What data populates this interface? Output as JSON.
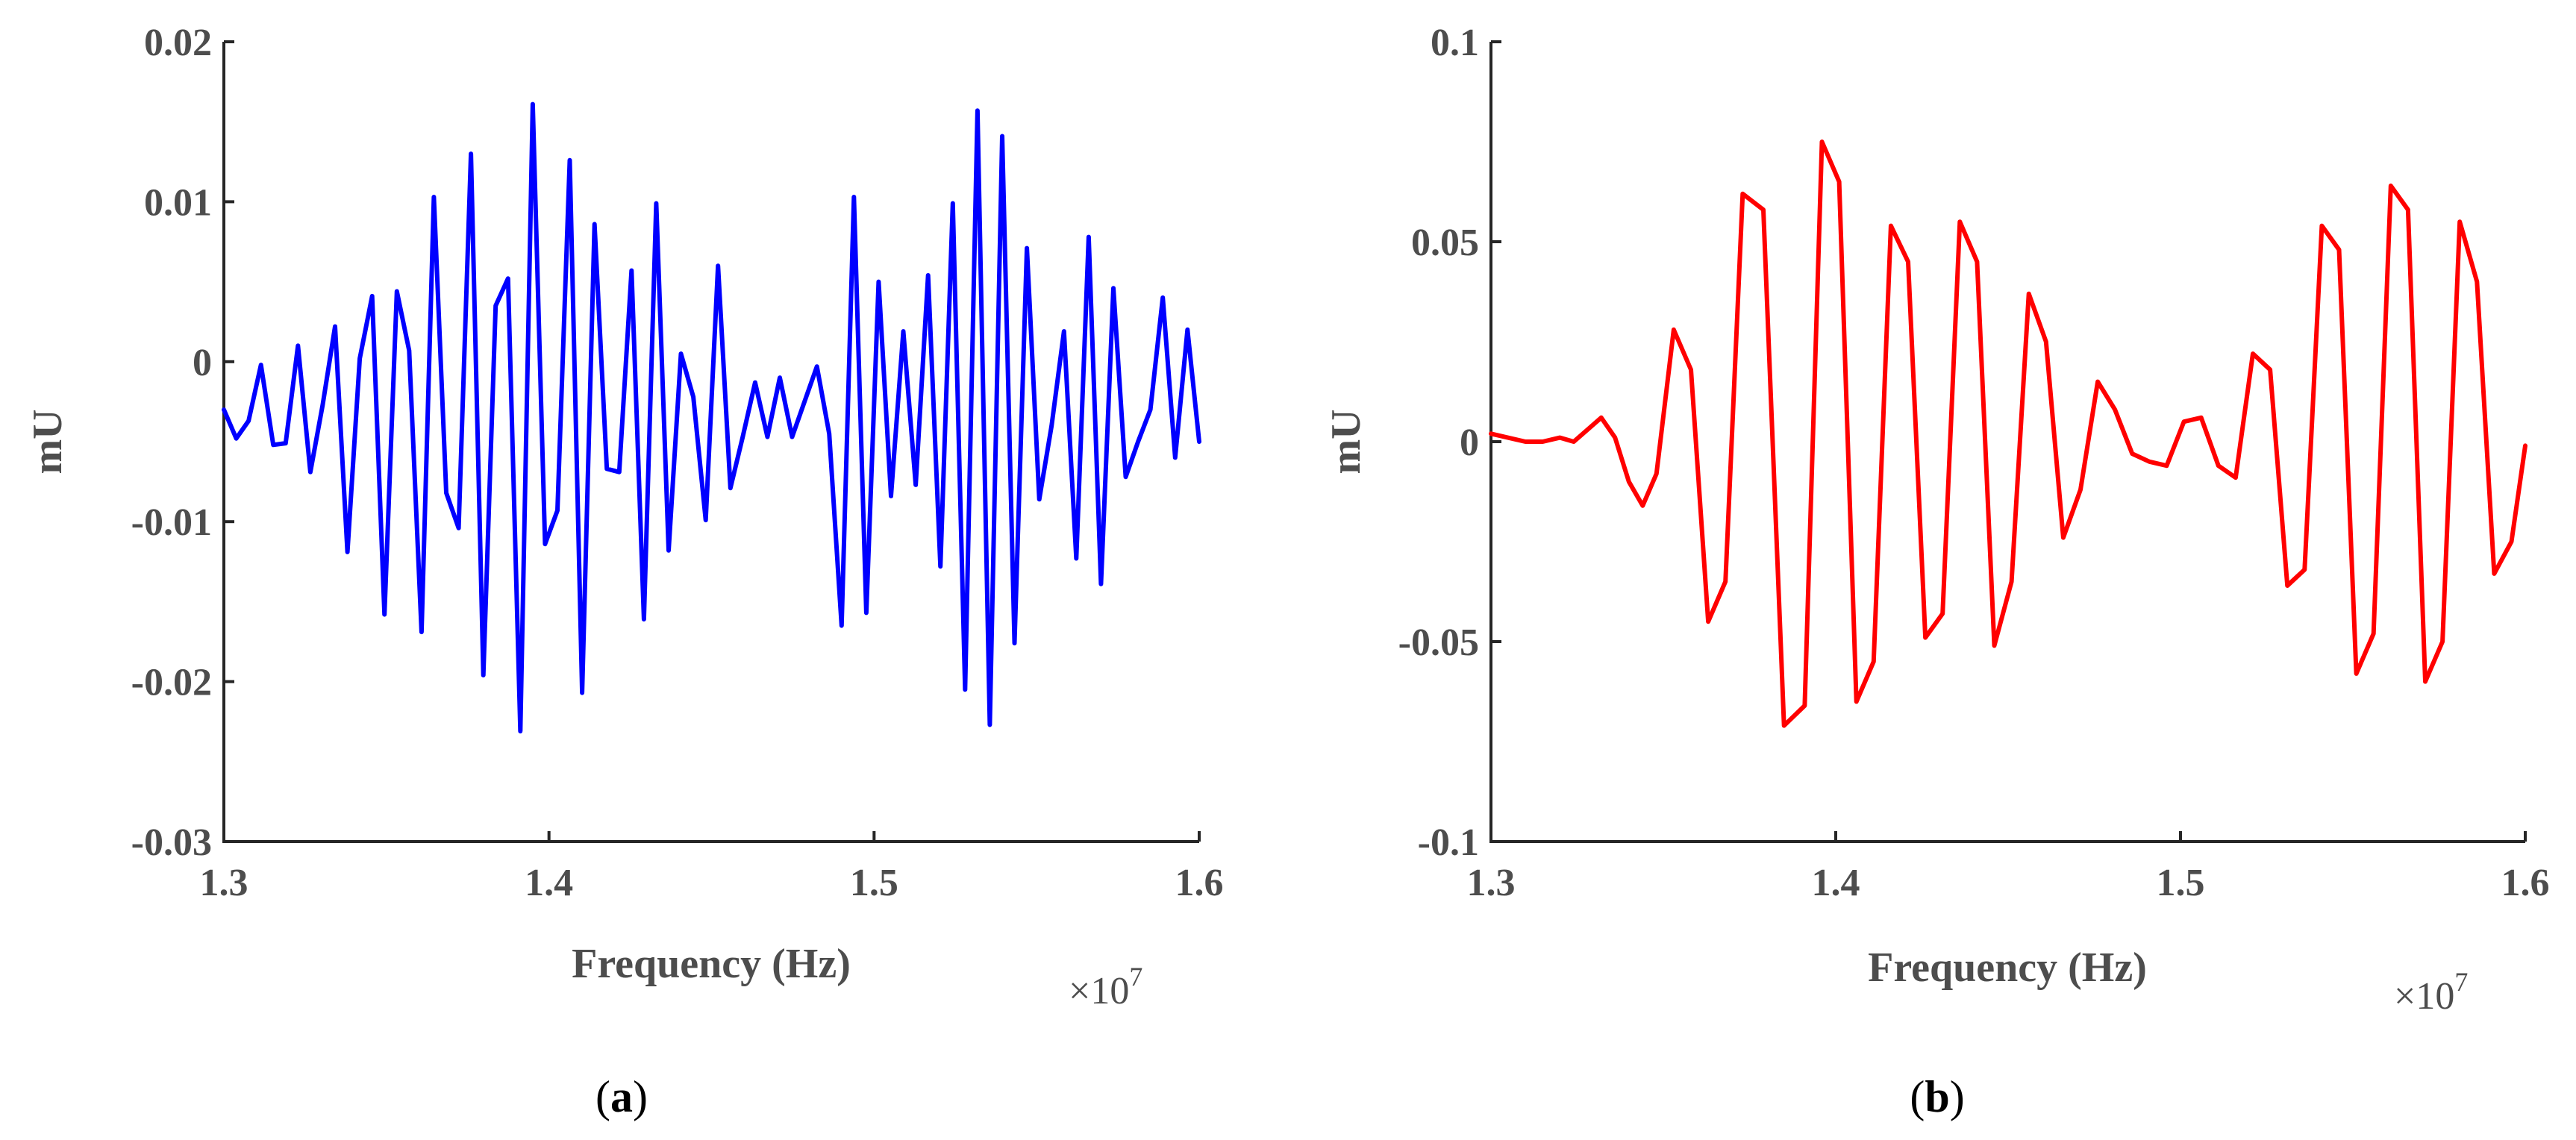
{
  "colors": {
    "panel_a": "#0000ff",
    "panel_b": "#ff0000",
    "axis": "#262626",
    "tick_text": "#4d4d4d"
  },
  "chart_data": [
    {
      "id": "a",
      "type": "line",
      "caption": {
        "open": "(",
        "letter": "a",
        "close": ")"
      },
      "xlabel": "Frequency (Hz)",
      "ylabel": "mU",
      "x_multiplier": {
        "base": "×10",
        "exponent": "7"
      },
      "xlim": [
        13000000,
        16000000
      ],
      "ylim": [
        -0.03,
        0.02
      ],
      "xticks": [
        13000000,
        14000000,
        15000000,
        16000000
      ],
      "xtick_labels": [
        "1.3",
        "1.4",
        "1.5",
        "1.6"
      ],
      "yticks": [
        0.02,
        0.01,
        0,
        -0.01,
        -0.02,
        -0.03
      ],
      "ytick_labels": [
        "0.02",
        "0.01",
        "0",
        "-0.01",
        "-0.02",
        "-0.03"
      ],
      "grid": false,
      "series": [
        {
          "color": "#0000ff",
          "x": [
            13000000,
            13038000,
            13076000,
            13114000,
            13152000,
            13190000,
            13228000,
            13266000,
            13304000,
            13342000,
            13380000,
            13418000,
            13456000,
            13494000,
            13532000,
            13570000,
            13608000,
            13646000,
            13684000,
            13722000,
            13760000,
            13798000,
            13836000,
            13874000,
            13912000,
            13950000,
            13988000,
            14026000,
            14064000,
            14102000,
            14140000,
            14178000,
            14216000,
            14254000,
            14292000,
            14330000,
            14368000,
            14406000,
            14444000,
            14482000,
            14520000,
            14558000,
            14596000,
            14634000,
            14672000,
            14710000,
            14748000,
            14786000,
            14824000,
            14862000,
            14900000,
            14938000,
            14976000,
            15014000,
            15052000,
            15090000,
            15128000,
            15166000,
            15204000,
            15242000,
            15280000,
            15318000,
            15356000,
            15394000,
            15432000,
            15470000,
            15508000,
            15546000,
            15584000,
            15622000,
            15660000,
            15698000,
            15736000,
            15774000,
            15812000,
            15850000,
            15888000,
            15926000,
            15964000,
            16000000
          ],
          "y": [
            -0.003,
            -0.0048,
            -0.0037,
            -0.0002,
            -0.0052,
            -0.0051,
            0.001,
            -0.0069,
            -0.0027,
            0.0022,
            -0.0119,
            0.0002,
            0.0041,
            -0.0158,
            0.0044,
            0.0007,
            -0.0169,
            0.0103,
            -0.0082,
            -0.0104,
            0.013,
            -0.0196,
            0.0035,
            0.0052,
            -0.0231,
            0.0161,
            -0.0114,
            -0.0093,
            0.0126,
            -0.0207,
            0.0086,
            -0.0067,
            -0.0069,
            0.0057,
            -0.0161,
            0.0099,
            -0.0118,
            0.0005,
            -0.0022,
            -0.0099,
            0.006,
            -0.0079,
            -0.0047,
            -0.0013,
            -0.0047,
            -0.001,
            -0.0047,
            -0.0025,
            -0.0003,
            -0.0045,
            -0.0165,
            0.0103,
            -0.0157,
            0.005,
            -0.0084,
            0.0019,
            -0.0077,
            0.0054,
            -0.0128,
            0.0099,
            -0.0205,
            0.0157,
            -0.0227,
            0.0141,
            -0.0176,
            0.0071,
            -0.0086,
            -0.004,
            0.0019,
            -0.0123,
            0.0078,
            -0.0139,
            0.0046,
            -0.0072,
            -0.005,
            -0.003,
            0.004,
            -0.006,
            0.002,
            -0.005
          ]
        }
      ]
    },
    {
      "id": "b",
      "type": "line",
      "caption": {
        "open": "(",
        "letter": "b",
        "close": ")"
      },
      "xlabel": "Frequency (Hz)",
      "ylabel": "mU",
      "x_multiplier": {
        "base": "×10",
        "exponent": "7"
      },
      "xlim": [
        13000000,
        16000000
      ],
      "ylim": [
        -0.1,
        0.1
      ],
      "xticks": [
        13000000,
        14000000,
        15000000,
        16000000
      ],
      "xtick_labels": [
        "1.3",
        "1.4",
        "1.5",
        "1.6"
      ],
      "yticks": [
        0.1,
        0.05,
        0,
        -0.05,
        -0.1
      ],
      "ytick_labels": [
        "0.1",
        "0.05",
        "0",
        "-0.05",
        "-0.1"
      ],
      "grid": false,
      "series": [
        {
          "color": "#ff0000",
          "x": [
            13000000,
            13100000,
            13150000,
            13200000,
            13240000,
            13280000,
            13320000,
            13360000,
            13400000,
            13440000,
            13480000,
            13530000,
            13580000,
            13630000,
            13680000,
            13730000,
            13790000,
            13850000,
            13910000,
            13960000,
            14010000,
            14060000,
            14110000,
            14160000,
            14210000,
            14260000,
            14310000,
            14360000,
            14410000,
            14460000,
            14510000,
            14560000,
            14610000,
            14660000,
            14710000,
            14760000,
            14810000,
            14860000,
            14910000,
            14960000,
            15010000,
            15060000,
            15110000,
            15160000,
            15210000,
            15260000,
            15310000,
            15360000,
            15410000,
            15460000,
            15510000,
            15560000,
            15610000,
            15660000,
            15710000,
            15760000,
            15810000,
            15860000,
            15910000,
            15960000,
            16000000
          ],
          "y": [
            0.002,
            0.0,
            0.0,
            0.001,
            0.0,
            0.003,
            0.006,
            0.001,
            -0.01,
            -0.016,
            -0.008,
            0.028,
            0.018,
            -0.045,
            -0.035,
            0.062,
            0.058,
            -0.071,
            -0.066,
            0.075,
            0.065,
            -0.065,
            -0.055,
            0.054,
            0.045,
            -0.049,
            -0.043,
            0.055,
            0.045,
            -0.051,
            -0.035,
            0.037,
            0.025,
            -0.024,
            -0.012,
            0.015,
            0.008,
            -0.003,
            -0.005,
            -0.006,
            0.005,
            0.006,
            -0.006,
            -0.009,
            0.022,
            0.018,
            -0.036,
            -0.032,
            0.054,
            0.048,
            -0.058,
            -0.048,
            0.064,
            0.058,
            -0.06,
            -0.05,
            0.055,
            0.04,
            -0.033,
            -0.025,
            -0.001
          ]
        }
      ]
    }
  ]
}
